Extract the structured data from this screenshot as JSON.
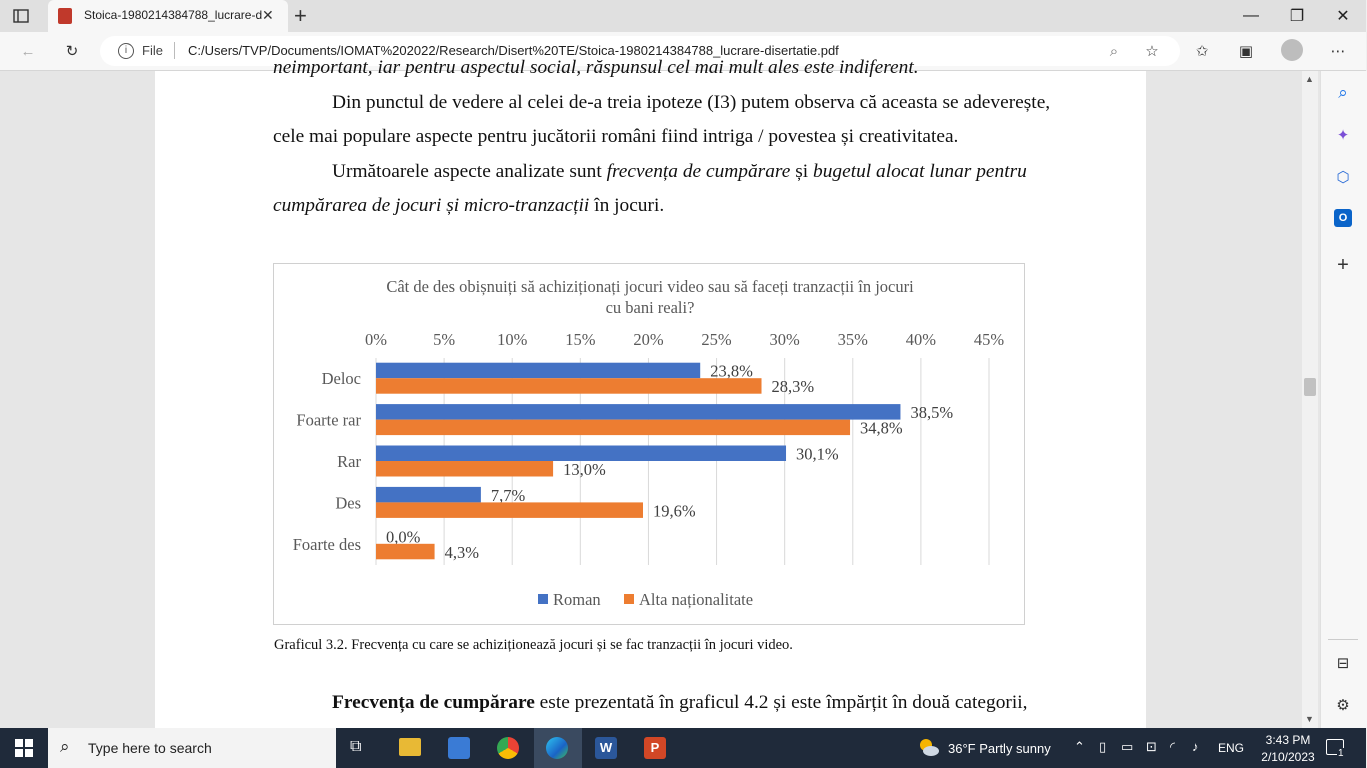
{
  "browser": {
    "tab_title": "Stoica-1980214384788_lucrare-d",
    "address_scheme_label": "File",
    "url": "C:/Users/TVP/Documents/IOMAT%202022/Research/Disert%20TE/Stoica-1980214384788_lucrare-disertatie.pdf"
  },
  "document": {
    "top_partial_line": "neimportant, iar pentru aspectul social, răspunsul cel mai mult ales este indiferent.",
    "para1_line1": "Din punctul de vedere al celei de-a treia ipoteze (I3) putem observa că aceasta se adeverește,",
    "para1_line2": "cele mai populare aspecte pentru jucătorii români fiind intriga / povestea și creativitatea.",
    "para2_l1_a": "Următoarele aspecte analizate sunt ",
    "para2_l1_b": "frecvența de cumpărare",
    "para2_l1_c": " și ",
    "para2_l1_d": "bugetul alocat lunar pentru",
    "para2_l2_a": "cumpărarea de jocuri și micro-tranzacții",
    "para2_l2_b": " în jocuri.",
    "caption": "Graficul 3.2. Frecvența cu care se achiziționează jocuri și se fac tranzacții în jocuri video.",
    "bottom_bold": "Frecvența de cumpărare",
    "bottom_rest": " este prezentată în graficul 4.2 și este împărțit în două categorii,"
  },
  "chart_data": {
    "type": "bar",
    "orientation": "horizontal",
    "title_line1": "Cât de des obișnuiți să achiziționați jocuri video sau să faceți tranzacții în jocuri",
    "title_line2": "cu bani reali?",
    "categories": [
      "Deloc",
      "Foarte rar",
      "Rar",
      "Des",
      "Foarte des"
    ],
    "ticks": [
      "0%",
      "5%",
      "10%",
      "15%",
      "20%",
      "25%",
      "30%",
      "35%",
      "40%",
      "45%"
    ],
    "xlim": [
      0,
      45
    ],
    "grid": true,
    "legend_position": "bottom",
    "series": [
      {
        "name": "Roman",
        "color": "#4472c4",
        "values": [
          23.8,
          38.5,
          30.1,
          7.7,
          0.0
        ],
        "labels": [
          "23,8%",
          "38,5%",
          "30,1%",
          "7,7%",
          "0,0%"
        ]
      },
      {
        "name": "Alta naționalitate",
        "color": "#ed7d31",
        "values": [
          28.3,
          34.8,
          13.0,
          19.6,
          4.3
        ],
        "labels": [
          "28,3%",
          "34,8%",
          "13,0%",
          "19,6%",
          "4,3%"
        ]
      }
    ]
  },
  "taskbar": {
    "search_placeholder": "Type here to search",
    "weather": "36°F  Partly sunny",
    "lang": "ENG",
    "time": "3:43 PM",
    "date": "2/10/2023",
    "notif_count": "1"
  }
}
